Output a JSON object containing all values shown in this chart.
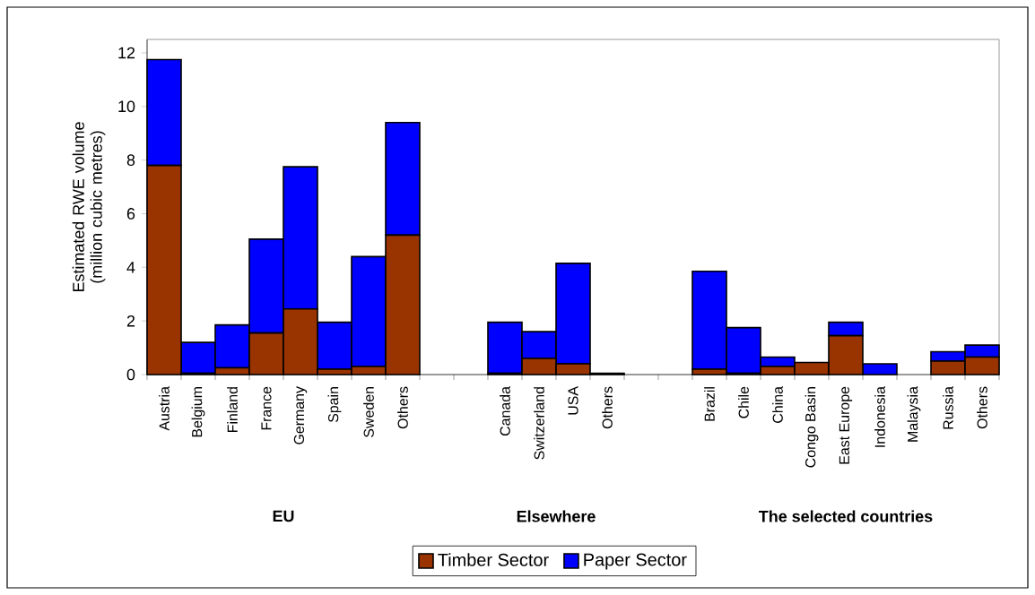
{
  "chart_data": {
    "type": "bar",
    "stacked": true,
    "ylabel": "Estimated RWE volume (million cubic metres)",
    "categories": [
      "Austria",
      "Belgium",
      "Finland",
      "France",
      "Germany",
      "Spain",
      "Sweden",
      "Others",
      null,
      null,
      "Canada",
      "Switzerland",
      "USA",
      "Others",
      null,
      null,
      "Brazil",
      "Chile",
      "China",
      "Congo Basin",
      "East Europe",
      "Indonesia",
      "Malaysia",
      "Russia",
      "Others"
    ],
    "series": [
      {
        "name": "Timber Sector",
        "color": "#993300",
        "values": [
          7.8,
          0.05,
          0.25,
          1.55,
          2.45,
          0.2,
          0.3,
          5.2,
          null,
          null,
          0.05,
          0.6,
          0.4,
          0.05,
          null,
          null,
          0.2,
          0.05,
          0.3,
          0.45,
          1.45,
          0,
          0,
          0.5,
          0.65
        ]
      },
      {
        "name": "Paper Sector",
        "color": "#0000ff",
        "values": [
          3.95,
          1.15,
          1.6,
          3.5,
          5.3,
          1.75,
          4.1,
          4.2,
          null,
          null,
          1.9,
          1.0,
          3.75,
          0,
          null,
          null,
          3.65,
          1.7,
          0.35,
          0,
          0.5,
          0.4,
          0,
          0.35,
          0.45
        ]
      }
    ],
    "annotations": [
      "EU",
      "Elsewhere",
      "The selected countries"
    ],
    "ylim": [
      0,
      12.5
    ],
    "yticks": [
      0,
      2,
      4,
      6,
      8,
      10,
      12
    ],
    "grid": false,
    "legend": "bottom"
  }
}
